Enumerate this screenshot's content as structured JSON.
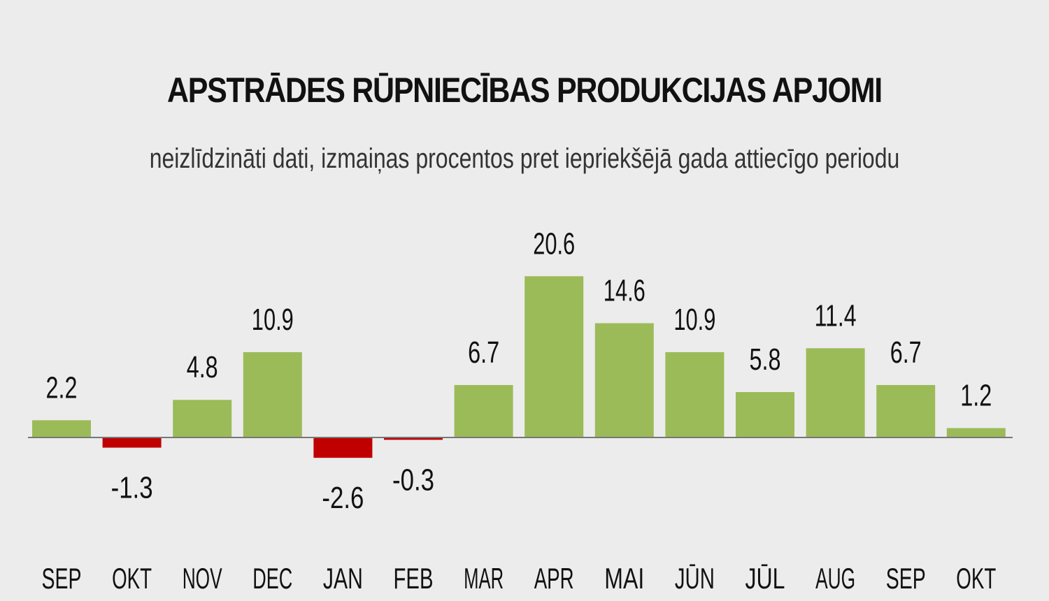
{
  "chart_data": {
    "type": "bar",
    "title": "APSTRĀDES RŪPNIECĪBAS PRODUKCIJAS APJOMI",
    "subtitle": "neizlīdzināti dati, izmaiņas procentos pret iepriekšējā gada attiecīgo periodu",
    "categories": [
      "SEP",
      "OKT",
      "NOV",
      "DEC",
      "JAN",
      "FEB",
      "MAR",
      "APR",
      "MAI",
      "JŪN",
      "JŪL",
      "AUG",
      "SEP",
      "OKT"
    ],
    "values": [
      2.2,
      -1.3,
      4.8,
      10.9,
      -2.6,
      -0.3,
      6.7,
      20.6,
      14.6,
      10.9,
      5.8,
      11.4,
      6.7,
      1.2
    ],
    "data_labels": [
      "2.2",
      "-1.3",
      "4.8",
      "10.9",
      "-2.6",
      "-0.3",
      "6.7",
      "20.6",
      "14.6",
      "10.9",
      "5.8",
      "11.4",
      "6.7",
      "1.2"
    ],
    "xlabel": "",
    "ylabel": "",
    "ylim": [
      -5,
      25
    ],
    "grid": false,
    "colors": {
      "positive": "#9bbb59",
      "negative": "#c00000",
      "axis": "#777777",
      "background": "#ececec"
    }
  }
}
